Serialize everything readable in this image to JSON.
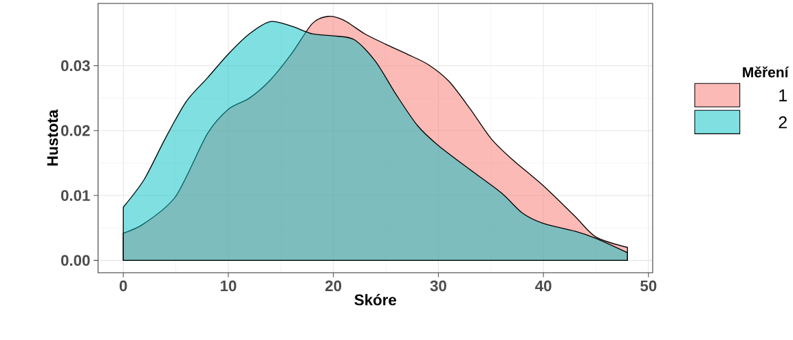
{
  "chart_data": {
    "type": "area",
    "xlabel": "Skóre",
    "ylabel": "Hustota",
    "legend_title": "Měření",
    "legend": "right",
    "grid": true,
    "xlim": [
      -2.4,
      50.4
    ],
    "ylim": [
      -0.0019,
      0.0396
    ],
    "xticks": [
      0,
      10,
      20,
      30,
      40,
      50
    ],
    "yticks": [
      {
        "value": 0,
        "label": "0.00"
      },
      {
        "value": 0.01,
        "label": "0.01"
      },
      {
        "value": 0.02,
        "label": "0.02"
      },
      {
        "value": 0.03,
        "label": "0.03"
      }
    ],
    "series": [
      {
        "name": "1",
        "color": "#f8766d",
        "x": [
          0,
          2,
          5,
          8,
          10,
          12,
          14,
          16,
          18,
          19.5,
          21,
          23,
          25,
          27,
          29,
          31,
          33,
          35,
          37,
          40,
          43,
          45,
          48
        ],
        "values": [
          0.0042,
          0.0057,
          0.0099,
          0.0195,
          0.0233,
          0.025,
          0.0278,
          0.0318,
          0.0365,
          0.0376,
          0.037,
          0.0349,
          0.0333,
          0.0318,
          0.0302,
          0.0276,
          0.0234,
          0.0188,
          0.0156,
          0.0115,
          0.0068,
          0.0036,
          0.002
        ]
      },
      {
        "name": "2",
        "color": "#00bfc4",
        "x": [
          0,
          2,
          4,
          6,
          8,
          10,
          12,
          14,
          16,
          18,
          20,
          22,
          24,
          26,
          28,
          30,
          33,
          36,
          38,
          40,
          43,
          45,
          48
        ],
        "values": [
          0.0082,
          0.0125,
          0.0188,
          0.0245,
          0.0281,
          0.0318,
          0.0349,
          0.0368,
          0.0361,
          0.0349,
          0.0346,
          0.034,
          0.0307,
          0.0255,
          0.0208,
          0.0177,
          0.014,
          0.0104,
          0.0073,
          0.0057,
          0.0045,
          0.0034,
          0.0012
        ]
      }
    ]
  }
}
